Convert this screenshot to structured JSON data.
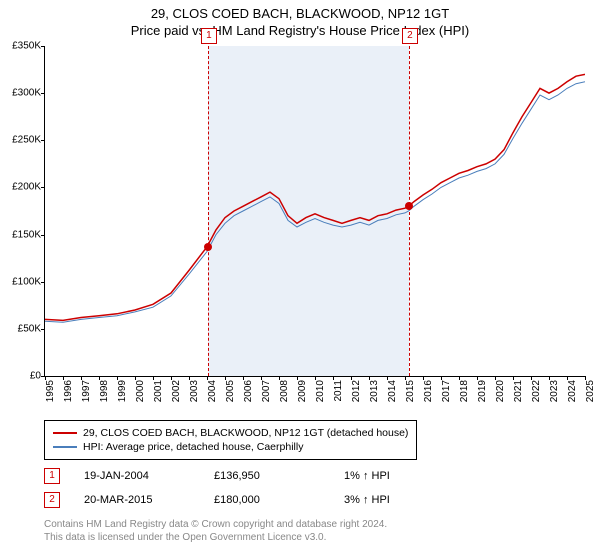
{
  "title": {
    "main": "29, CLOS COED BACH, BLACKWOOD, NP12 1GT",
    "sub": "Price paid vs. HM Land Registry's House Price Index (HPI)"
  },
  "chart": {
    "type": "line",
    "background_color": "#ffffff",
    "shade_color": "#eaf0f8",
    "ylim": [
      0,
      350000
    ],
    "ytick_step": 50000,
    "yticks": [
      "£0",
      "£50K",
      "£100K",
      "£150K",
      "£200K",
      "£250K",
      "£300K",
      "£350K"
    ],
    "xlim": [
      1995,
      2025
    ],
    "xticks": [
      "1995",
      "1996",
      "1997",
      "1998",
      "1999",
      "2000",
      "2001",
      "2002",
      "2003",
      "2004",
      "2005",
      "2006",
      "2007",
      "2008",
      "2009",
      "2010",
      "2011",
      "2012",
      "2013",
      "2014",
      "2015",
      "2016",
      "2017",
      "2018",
      "2019",
      "2020",
      "2021",
      "2022",
      "2023",
      "2024",
      "2025"
    ],
    "series": [
      {
        "name": "29, CLOS COED BACH, BLACKWOOD, NP12 1GT (detached house)",
        "color": "#cc0000",
        "width": 1.5,
        "data": [
          [
            1995,
            60000
          ],
          [
            1996,
            59000
          ],
          [
            1997,
            62000
          ],
          [
            1998,
            64000
          ],
          [
            1999,
            66000
          ],
          [
            2000,
            70000
          ],
          [
            2001,
            76000
          ],
          [
            2002,
            88000
          ],
          [
            2003,
            112000
          ],
          [
            2004,
            137000
          ],
          [
            2004.5,
            155000
          ],
          [
            2005,
            168000
          ],
          [
            2005.5,
            175000
          ],
          [
            2006,
            180000
          ],
          [
            2006.5,
            185000
          ],
          [
            2007,
            190000
          ],
          [
            2007.5,
            195000
          ],
          [
            2008,
            188000
          ],
          [
            2008.5,
            170000
          ],
          [
            2009,
            162000
          ],
          [
            2009.5,
            168000
          ],
          [
            2010,
            172000
          ],
          [
            2010.5,
            168000
          ],
          [
            2011,
            165000
          ],
          [
            2011.5,
            162000
          ],
          [
            2012,
            165000
          ],
          [
            2012.5,
            168000
          ],
          [
            2013,
            165000
          ],
          [
            2013.5,
            170000
          ],
          [
            2014,
            172000
          ],
          [
            2014.5,
            176000
          ],
          [
            2015,
            178000
          ],
          [
            2015.2,
            180000
          ],
          [
            2015.5,
            185000
          ],
          [
            2016,
            192000
          ],
          [
            2016.5,
            198000
          ],
          [
            2017,
            205000
          ],
          [
            2017.5,
            210000
          ],
          [
            2018,
            215000
          ],
          [
            2018.5,
            218000
          ],
          [
            2019,
            222000
          ],
          [
            2019.5,
            225000
          ],
          [
            2020,
            230000
          ],
          [
            2020.5,
            240000
          ],
          [
            2021,
            258000
          ],
          [
            2021.5,
            275000
          ],
          [
            2022,
            290000
          ],
          [
            2022.5,
            305000
          ],
          [
            2023,
            300000
          ],
          [
            2023.5,
            305000
          ],
          [
            2024,
            312000
          ],
          [
            2024.5,
            318000
          ],
          [
            2025,
            320000
          ]
        ]
      },
      {
        "name": "HPI: Average price, detached house, Caerphilly",
        "color": "#4a7ebb",
        "width": 1,
        "data": [
          [
            1995,
            58000
          ],
          [
            1996,
            57000
          ],
          [
            1997,
            60000
          ],
          [
            1998,
            62000
          ],
          [
            1999,
            64000
          ],
          [
            2000,
            68000
          ],
          [
            2001,
            73000
          ],
          [
            2002,
            85000
          ],
          [
            2003,
            108000
          ],
          [
            2004,
            132000
          ],
          [
            2004.5,
            150000
          ],
          [
            2005,
            162000
          ],
          [
            2005.5,
            170000
          ],
          [
            2006,
            175000
          ],
          [
            2006.5,
            180000
          ],
          [
            2007,
            185000
          ],
          [
            2007.5,
            190000
          ],
          [
            2008,
            183000
          ],
          [
            2008.5,
            165000
          ],
          [
            2009,
            158000
          ],
          [
            2009.5,
            163000
          ],
          [
            2010,
            167000
          ],
          [
            2010.5,
            163000
          ],
          [
            2011,
            160000
          ],
          [
            2011.5,
            158000
          ],
          [
            2012,
            160000
          ],
          [
            2012.5,
            163000
          ],
          [
            2013,
            160000
          ],
          [
            2013.5,
            165000
          ],
          [
            2014,
            167000
          ],
          [
            2014.5,
            171000
          ],
          [
            2015,
            173000
          ],
          [
            2015.2,
            175000
          ],
          [
            2015.5,
            180000
          ],
          [
            2016,
            187000
          ],
          [
            2016.5,
            193000
          ],
          [
            2017,
            200000
          ],
          [
            2017.5,
            205000
          ],
          [
            2018,
            210000
          ],
          [
            2018.5,
            213000
          ],
          [
            2019,
            217000
          ],
          [
            2019.5,
            220000
          ],
          [
            2020,
            225000
          ],
          [
            2020.5,
            235000
          ],
          [
            2021,
            252000
          ],
          [
            2021.5,
            268000
          ],
          [
            2022,
            283000
          ],
          [
            2022.5,
            298000
          ],
          [
            2023,
            293000
          ],
          [
            2023.5,
            298000
          ],
          [
            2024,
            305000
          ],
          [
            2024.5,
            310000
          ],
          [
            2025,
            312000
          ]
        ]
      }
    ],
    "markers": [
      {
        "n": "1",
        "x": 2004.05,
        "y": 136950
      },
      {
        "n": "2",
        "x": 2015.22,
        "y": 180000
      }
    ],
    "shade_region": [
      2004.05,
      2015.22
    ]
  },
  "legend": {
    "items": [
      {
        "color": "#cc0000",
        "label": "29, CLOS COED BACH, BLACKWOOD, NP12 1GT (detached house)"
      },
      {
        "color": "#4a7ebb",
        "label": "HPI: Average price, detached house, Caerphilly"
      }
    ]
  },
  "sales": [
    {
      "n": "1",
      "date": "19-JAN-2004",
      "price": "£136,950",
      "delta": "1% ↑ HPI"
    },
    {
      "n": "2",
      "date": "20-MAR-2015",
      "price": "£180,000",
      "delta": "3% ↑ HPI"
    }
  ],
  "footer": {
    "line1": "Contains HM Land Registry data © Crown copyright and database right 2024.",
    "line2": "This data is licensed under the Open Government Licence v3.0."
  }
}
